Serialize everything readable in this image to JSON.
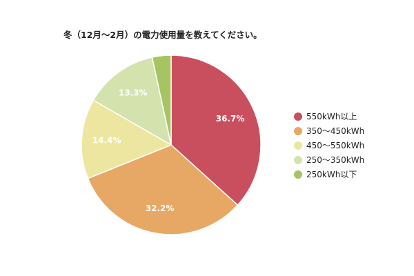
{
  "chart_data": {
    "type": "pie",
    "title": "冬（12月～2月）の電力使用量を教えてください。",
    "legend_position": "right",
    "slices": [
      {
        "label": "550kWh以上",
        "value": 36.7,
        "display": "36.7%",
        "color": "#c94f5e"
      },
      {
        "label": "350～450kWh",
        "value": 32.2,
        "display": "32.2%",
        "color": "#e8a865"
      },
      {
        "label": "450～550kWh",
        "value": 14.4,
        "display": "14.4%",
        "color": "#ede6a0"
      },
      {
        "label": "250～350kWh",
        "value": 13.3,
        "display": "13.3%",
        "color": "#d4e2ae"
      },
      {
        "label": "250kWh以下",
        "value": 3.4,
        "display": "",
        "color": "#a7c463"
      }
    ]
  }
}
